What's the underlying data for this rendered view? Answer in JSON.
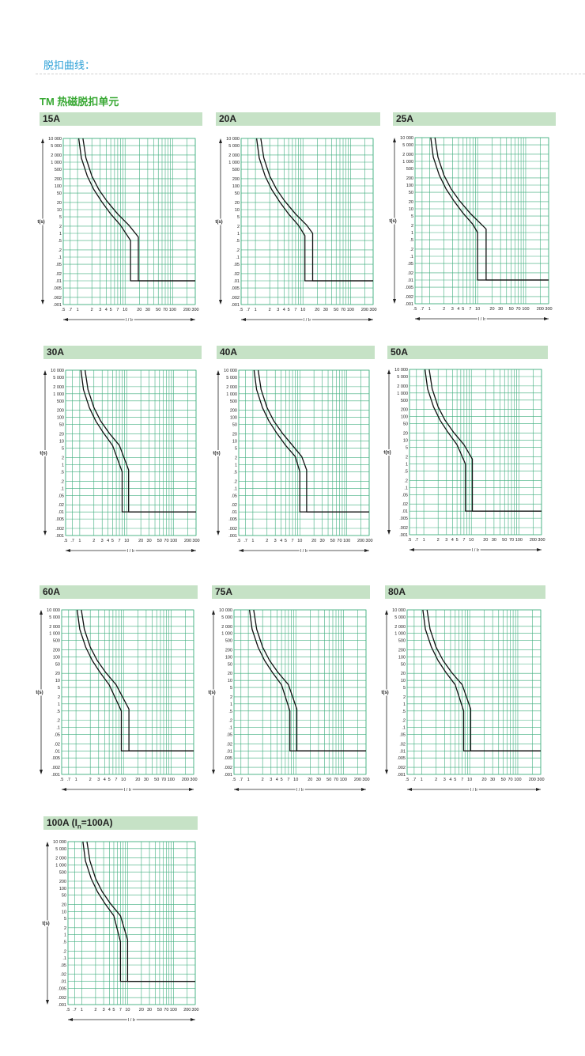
{
  "page": {
    "section_title": "脱扣曲线：",
    "subtitle": "TM 热磁脱扣单元"
  },
  "colors": {
    "grid": "#3fae7e",
    "curve": "#111111",
    "header_bg": "#c6e2c6",
    "section_title": "#2a9fd6",
    "subtitle": "#3aa935"
  },
  "axis": {
    "y_label": "t(s)",
    "x_label": "I / Ir",
    "y_ticks": [
      "10 000",
      "5 000",
      "2 000",
      "1 000",
      "500",
      "200",
      "100",
      "50",
      "20",
      "10",
      "5",
      "2",
      "1",
      ".5",
      ".2",
      ".1",
      ".05",
      ".02",
      ".01",
      ".005",
      ".002",
      ".001"
    ],
    "x_ticks": [
      ".5",
      ".7",
      "1",
      "2",
      "3",
      "4",
      "5",
      "7",
      "10",
      "20",
      "30",
      "50",
      "70",
      "100",
      "200",
      "300"
    ]
  },
  "chart_data": [
    {
      "type": "line",
      "label": "15A",
      "label_main": "15A",
      "label_sub": "",
      "label_tail": "",
      "xscale": "log",
      "yscale": "log",
      "xlim": [
        0.5,
        300
      ],
      "ylim": [
        0.001,
        10000
      ],
      "grid": true,
      "xlabel": "I / Ir",
      "ylabel": "t(s)",
      "series": [
        {
          "x": [
            1.06,
            1.2,
            1.6,
            2.2,
            3.2,
            5,
            8,
            13,
            13,
            300
          ],
          "y": [
            10000,
            1500,
            260,
            70,
            22,
            6.5,
            2.2,
            0.5,
            0.01,
            0.01
          ]
        },
        {
          "x": [
            1.3,
            1.5,
            2,
            2.8,
            4.2,
            7,
            12,
            19,
            19,
            300
          ],
          "y": [
            10000,
            1500,
            260,
            70,
            22,
            6.5,
            2.2,
            0.7,
            0.01,
            0.01
          ]
        }
      ]
    },
    {
      "type": "line",
      "label": "20A",
      "label_main": "20A",
      "label_sub": "",
      "label_tail": "",
      "xscale": "log",
      "yscale": "log",
      "xlim": [
        0.5,
        300
      ],
      "ylim": [
        0.001,
        10000
      ],
      "grid": true,
      "xlabel": "I / Ir",
      "ylabel": "t(s)",
      "series": [
        {
          "x": [
            1.06,
            1.2,
            1.6,
            2.2,
            3.2,
            5,
            8,
            11,
            11,
            300
          ],
          "y": [
            10000,
            1500,
            260,
            70,
            22,
            6.5,
            2.2,
            0.8,
            0.01,
            0.01
          ]
        },
        {
          "x": [
            1.3,
            1.5,
            2,
            2.8,
            4.2,
            7,
            12,
            16,
            16,
            300
          ],
          "y": [
            10000,
            1500,
            260,
            70,
            22,
            6.5,
            2.2,
            1.0,
            0.01,
            0.01
          ]
        }
      ]
    },
    {
      "type": "line",
      "label": "25A",
      "label_main": "25A",
      "label_sub": "",
      "label_tail": "",
      "xscale": "log",
      "yscale": "log",
      "xlim": [
        0.5,
        300
      ],
      "ylim": [
        0.001,
        10000
      ],
      "grid": true,
      "xlabel": "I / Ir",
      "ylabel": "t(s)",
      "series": [
        {
          "x": [
            1.06,
            1.2,
            1.6,
            2.2,
            3.2,
            5,
            8,
            10,
            10,
            300
          ],
          "y": [
            10000,
            1500,
            260,
            70,
            22,
            6.5,
            2.2,
            1.0,
            0.01,
            0.01
          ]
        },
        {
          "x": [
            1.3,
            1.5,
            2,
            2.8,
            4.2,
            7,
            12,
            15,
            15,
            300
          ],
          "y": [
            10000,
            1500,
            260,
            70,
            22,
            6.5,
            2.2,
            1.4,
            0.01,
            0.01
          ]
        }
      ]
    },
    {
      "type": "line",
      "label": "30A",
      "label_main": "30A",
      "label_sub": "",
      "label_tail": "",
      "xscale": "log",
      "yscale": "log",
      "xlim": [
        0.5,
        300
      ],
      "ylim": [
        0.001,
        10000
      ],
      "grid": true,
      "xlabel": "I / Ir",
      "ylabel": "t(s)",
      "series": [
        {
          "x": [
            1.06,
            1.2,
            1.6,
            2.2,
            3.2,
            5,
            8,
            8,
            300
          ],
          "y": [
            10000,
            1500,
            260,
            70,
            22,
            6.5,
            0.5,
            0.01,
            0.01
          ]
        },
        {
          "x": [
            1.3,
            1.5,
            2,
            2.8,
            4.2,
            7,
            11,
            11,
            300
          ],
          "y": [
            10000,
            1500,
            260,
            70,
            22,
            6.5,
            0.6,
            0.01,
            0.01
          ]
        }
      ]
    },
    {
      "type": "line",
      "label": "40A",
      "label_main": "40A",
      "label_sub": "",
      "label_tail": "",
      "xscale": "log",
      "yscale": "log",
      "xlim": [
        0.5,
        300
      ],
      "ylim": [
        0.001,
        10000
      ],
      "grid": true,
      "xlabel": "I / Ir",
      "ylabel": "t(s)",
      "series": [
        {
          "x": [
            1.06,
            1.2,
            1.6,
            2.2,
            3.2,
            5,
            8,
            10,
            10,
            300
          ],
          "y": [
            10000,
            1500,
            260,
            70,
            22,
            6.5,
            2.2,
            0.5,
            0.01,
            0.01
          ]
        },
        {
          "x": [
            1.3,
            1.5,
            2,
            2.8,
            4.2,
            7,
            11,
            14,
            14,
            300
          ],
          "y": [
            10000,
            1500,
            260,
            70,
            22,
            6.5,
            2.2,
            0.6,
            0.01,
            0.01
          ]
        }
      ]
    },
    {
      "type": "line",
      "label": "50A",
      "label_main": "50A",
      "label_sub": "",
      "label_tail": "",
      "xscale": "log",
      "yscale": "log",
      "xlim": [
        0.5,
        300
      ],
      "ylim": [
        0.001,
        10000
      ],
      "grid": true,
      "xlabel": "I / Ir",
      "ylabel": "t(s)",
      "series": [
        {
          "x": [
            1.06,
            1.2,
            1.6,
            2.2,
            3.2,
            5,
            7.5,
            7.5,
            300
          ],
          "y": [
            10000,
            1500,
            260,
            70,
            22,
            6.5,
            1.0,
            0.01,
            0.01
          ]
        },
        {
          "x": [
            1.3,
            1.5,
            2,
            2.8,
            4.2,
            7,
            10.5,
            10.5,
            300
          ],
          "y": [
            10000,
            1500,
            260,
            70,
            22,
            6.5,
            1.6,
            0.01,
            0.01
          ]
        }
      ]
    },
    {
      "type": "line",
      "label": "60A",
      "label_main": "60A",
      "label_sub": "",
      "label_tail": "",
      "xscale": "log",
      "yscale": "log",
      "xlim": [
        0.5,
        300
      ],
      "ylim": [
        0.001,
        10000
      ],
      "grid": true,
      "xlabel": "I / Ir",
      "ylabel": "t(s)",
      "series": [
        {
          "x": [
            1.06,
            1.2,
            1.6,
            2.2,
            3.2,
            5,
            9,
            9,
            300
          ],
          "y": [
            10000,
            1500,
            260,
            70,
            22,
            6.5,
            0.5,
            0.01,
            0.01
          ]
        },
        {
          "x": [
            1.3,
            1.5,
            2,
            2.8,
            4.2,
            7,
            13,
            13,
            300
          ],
          "y": [
            10000,
            1500,
            260,
            70,
            22,
            6.5,
            0.6,
            0.01,
            0.01
          ]
        }
      ]
    },
    {
      "type": "line",
      "label": "75A",
      "label_main": "75A",
      "label_sub": "",
      "label_tail": "",
      "xscale": "log",
      "yscale": "log",
      "xlim": [
        0.5,
        300
      ],
      "ylim": [
        0.001,
        10000
      ],
      "grid": true,
      "xlabel": "I / Ir",
      "ylabel": "t(s)",
      "series": [
        {
          "x": [
            1.06,
            1.2,
            1.6,
            2.2,
            3.2,
            5,
            7.5,
            7.5,
            300
          ],
          "y": [
            10000,
            1500,
            260,
            70,
            22,
            6.5,
            0.5,
            0.01,
            0.01
          ]
        },
        {
          "x": [
            1.3,
            1.5,
            2,
            2.8,
            4.2,
            7,
            10.5,
            10.5,
            300
          ],
          "y": [
            10000,
            1500,
            260,
            70,
            22,
            6.5,
            0.6,
            0.01,
            0.01
          ]
        }
      ]
    },
    {
      "type": "line",
      "label": "80A",
      "label_main": "80A",
      "label_sub": "",
      "label_tail": "",
      "xscale": "log",
      "yscale": "log",
      "xlim": [
        0.5,
        300
      ],
      "ylim": [
        0.001,
        10000
      ],
      "grid": true,
      "xlabel": "I / Ir",
      "ylabel": "t(s)",
      "series": [
        {
          "x": [
            1.06,
            1.2,
            1.6,
            2.2,
            3.2,
            5,
            7.5,
            7.5,
            300
          ],
          "y": [
            10000,
            1500,
            260,
            70,
            22,
            6.5,
            0.5,
            0.01,
            0.01
          ]
        },
        {
          "x": [
            1.3,
            1.5,
            2,
            2.8,
            4.2,
            7,
            10.5,
            10.5,
            300
          ],
          "y": [
            10000,
            1500,
            260,
            70,
            22,
            6.5,
            0.6,
            0.01,
            0.01
          ]
        }
      ]
    },
    {
      "type": "line",
      "label": "100A (In=100A)",
      "label_main": "100A (I",
      "label_sub": "n",
      "label_tail": "=100A)",
      "xscale": "log",
      "yscale": "log",
      "xlim": [
        0.5,
        300
      ],
      "ylim": [
        0.001,
        10000
      ],
      "grid": true,
      "xlabel": "I / Ir",
      "ylabel": "t(s)",
      "series": [
        {
          "x": [
            1.06,
            1.2,
            1.6,
            2.2,
            3.2,
            5,
            7,
            7,
            300
          ],
          "y": [
            10000,
            1500,
            260,
            70,
            22,
            6.5,
            0.5,
            0.01,
            0.01
          ]
        },
        {
          "x": [
            1.3,
            1.5,
            2,
            2.8,
            4.2,
            7,
            10,
            10,
            300
          ],
          "y": [
            10000,
            1500,
            260,
            70,
            22,
            6.5,
            0.6,
            0.01,
            0.01
          ]
        }
      ]
    }
  ]
}
